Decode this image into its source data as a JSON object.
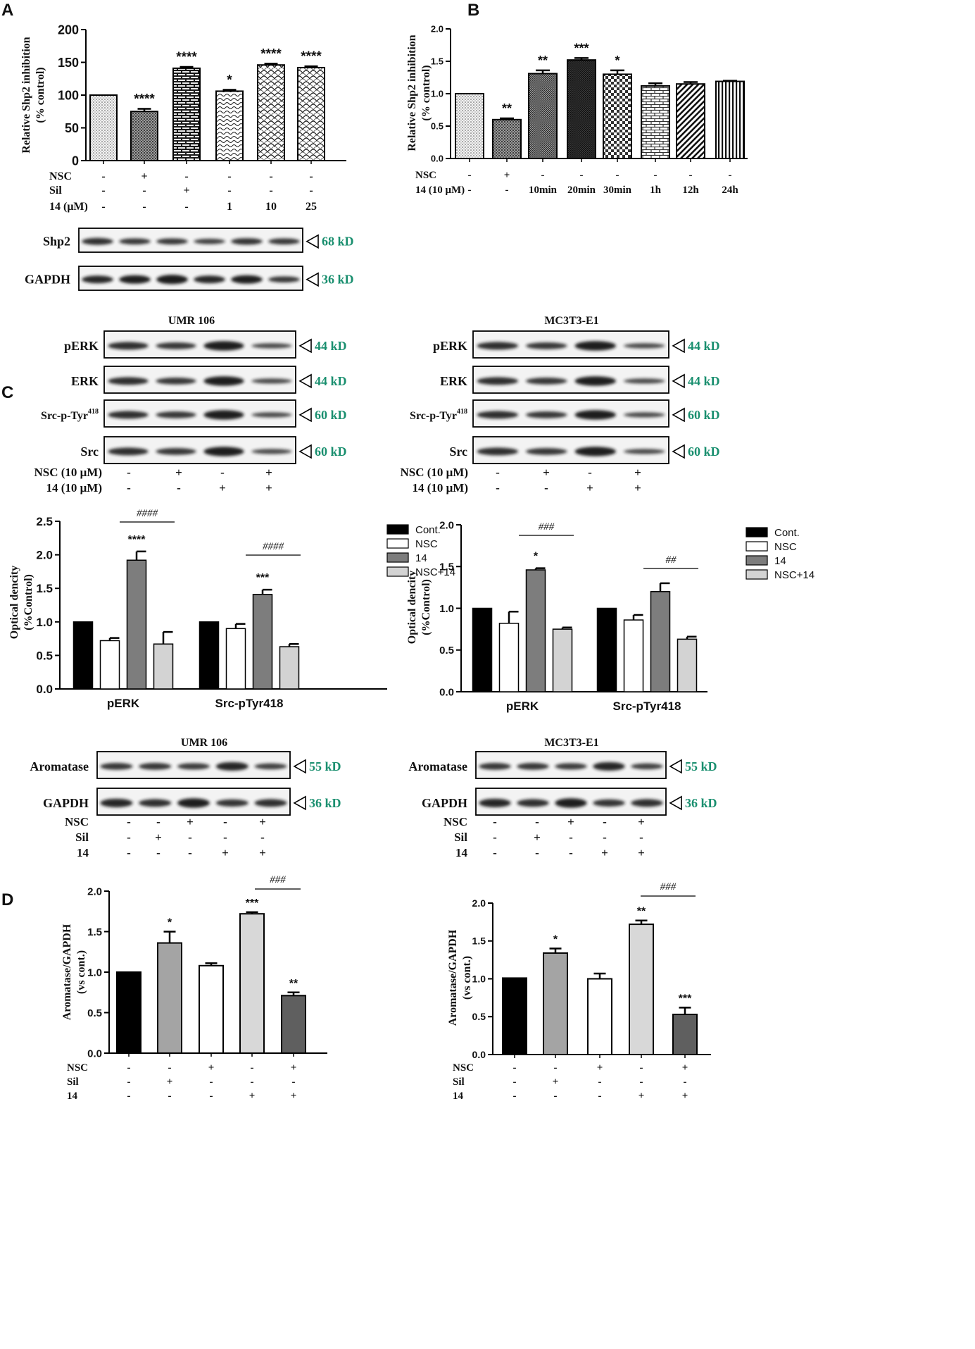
{
  "kd_color": "#1a8f6f",
  "panels": [
    {
      "letter": "A"
    },
    {
      "letter": "B"
    },
    {
      "letter": "C"
    },
    {
      "letter": "D"
    }
  ],
  "chart_data": [
    {
      "id": "A",
      "type": "bar",
      "ylabel": "Relative Shp2 inhibition\n(% control)",
      "ylim": [
        0,
        200
      ],
      "yticks": [
        "0",
        "50",
        "100",
        "150",
        "200"
      ],
      "values": [
        100,
        75,
        141,
        106,
        146,
        142
      ],
      "errors": [
        0,
        4,
        2,
        2,
        2,
        2
      ],
      "sig": [
        "",
        "****",
        "****",
        "*",
        "****",
        "****"
      ],
      "patterns": [
        "dots",
        "dots-dark",
        "brick",
        "wave",
        "scale",
        "scale"
      ],
      "condition_rows": [
        {
          "label": "NSC",
          "marks": [
            "-",
            "+",
            "-",
            "-",
            "-",
            "-"
          ]
        },
        {
          "label": "Sil",
          "marks": [
            "-",
            "-",
            "+",
            "-",
            "-",
            "-"
          ]
        },
        {
          "label": "14 (μM)",
          "marks": [
            "-",
            "-",
            "-",
            "1",
            "10",
            "25"
          ]
        }
      ]
    },
    {
      "id": "B",
      "type": "bar",
      "ylabel": "Relative Shp2 inhibition\n(% control)",
      "ylim": [
        0,
        2.0
      ],
      "yticks": [
        "0.0",
        "0.5",
        "1.0",
        "1.5",
        "2.0"
      ],
      "values": [
        1.0,
        0.6,
        1.31,
        1.52,
        1.3,
        1.12,
        1.15,
        1.19
      ],
      "errors": [
        0,
        0.02,
        0.05,
        0.03,
        0.06,
        0.04,
        0.03,
        0.01
      ],
      "sig": [
        "",
        "**",
        "**",
        "***",
        "*",
        "",
        "",
        ""
      ],
      "patterns": [
        "dots",
        "dots-dark",
        "dense",
        "dense-dark",
        "checker",
        "brick-light",
        "diag",
        "vlines"
      ],
      "condition_rows": [
        {
          "label": "NSC",
          "marks": [
            "-",
            "+",
            "-",
            "-",
            "-",
            "-",
            "-",
            "-"
          ]
        },
        {
          "label": "14 (10 μM)",
          "marks": [
            "-",
            "-",
            "10min",
            "20min",
            "30min",
            "1h",
            "12h",
            "24h"
          ]
        }
      ]
    },
    {
      "id": "C-UMR106",
      "type": "bar",
      "ylabel": "Optical dencity\n(%Control)",
      "ylim": [
        0,
        2.5
      ],
      "yticks": [
        "0.0",
        "0.5",
        "1.0",
        "1.5",
        "2.0",
        "2.5"
      ],
      "categories": [
        "pERK",
        "Src-pTyr418"
      ],
      "series": [
        {
          "name": "Cont.",
          "color": "#000000",
          "values": [
            1.0,
            1.0
          ],
          "errors": [
            0,
            0
          ]
        },
        {
          "name": "NSC",
          "color": "#ffffff",
          "values": [
            0.72,
            0.9
          ],
          "errors": [
            0.04,
            0.07
          ]
        },
        {
          "name": "14",
          "color": "#7d7d7d",
          "values": [
            1.92,
            1.41
          ],
          "errors": [
            0.13,
            0.07
          ]
        },
        {
          "name": "NSC+14",
          "color": "#d3d3d3",
          "values": [
            0.67,
            0.63
          ],
          "errors": [
            0.18,
            0.04
          ]
        }
      ],
      "sig": [
        [
          "",
          "",
          "****",
          ""
        ],
        [
          "",
          "",
          "***",
          ""
        ]
      ],
      "hash": [
        "####",
        "####"
      ]
    },
    {
      "id": "C-MC3T3",
      "type": "bar",
      "ylabel": "Optical dencity\n(%Control)",
      "ylim": [
        0,
        2.0
      ],
      "yticks": [
        "0.0",
        "0.5",
        "1.0",
        "1.5",
        "2.0"
      ],
      "categories": [
        "pERK",
        "Src-pTyr418"
      ],
      "series": [
        {
          "name": "Cont.",
          "color": "#000000",
          "values": [
            1.0,
            1.0
          ],
          "errors": [
            0,
            0
          ]
        },
        {
          "name": "NSC",
          "color": "#ffffff",
          "values": [
            0.82,
            0.86
          ],
          "errors": [
            0.14,
            0.06
          ]
        },
        {
          "name": "14",
          "color": "#7d7d7d",
          "values": [
            1.46,
            1.2
          ],
          "errors": [
            0.02,
            0.1
          ]
        },
        {
          "name": "NSC+14",
          "color": "#d3d3d3",
          "values": [
            0.75,
            0.63
          ],
          "errors": [
            0.02,
            0.03
          ]
        }
      ],
      "sig": [
        [
          "",
          "",
          "*",
          ""
        ],
        [
          "",
          "",
          "",
          ""
        ]
      ],
      "hash": [
        "###",
        "##"
      ]
    },
    {
      "id": "D-UMR106",
      "type": "bar",
      "ylabel": "Aromatase/GAPDH\n(vs cont.)",
      "ylim": [
        0,
        2.0
      ],
      "yticks": [
        "0.0",
        "0.5",
        "1.0",
        "1.5",
        "2.0"
      ],
      "values": [
        1.0,
        1.36,
        1.08,
        1.72,
        0.71
      ],
      "errors": [
        0,
        0.14,
        0.03,
        0.02,
        0.04
      ],
      "colors": [
        "#000000",
        "#a4a4a4",
        "#ffffff",
        "#d8d8d8",
        "#5f5f5f"
      ],
      "sig": [
        "",
        "*",
        "",
        "***",
        "**"
      ],
      "hash": "###",
      "condition_rows": [
        {
          "label": "NSC",
          "marks": [
            "-",
            "-",
            "+",
            "-",
            "+"
          ]
        },
        {
          "label": "Sil",
          "marks": [
            "-",
            "+",
            "-",
            "-",
            "-"
          ]
        },
        {
          "label": "14",
          "marks": [
            "-",
            "-",
            "-",
            "+",
            "+"
          ]
        }
      ]
    },
    {
      "id": "D-MC3T3",
      "type": "bar",
      "ylabel": "Aromatase/GAPDH\n(vs cont.)",
      "ylim": [
        0,
        2.0
      ],
      "yticks": [
        "0.0",
        "0.5",
        "1.0",
        "1.5",
        "2.0"
      ],
      "values": [
        1.01,
        1.34,
        1.0,
        1.72,
        0.53
      ],
      "errors": [
        0,
        0.06,
        0.07,
        0.05,
        0.09
      ],
      "colors": [
        "#000000",
        "#a4a4a4",
        "#ffffff",
        "#d8d8d8",
        "#5f5f5f"
      ],
      "sig": [
        "",
        "*",
        "",
        "**",
        "***"
      ],
      "hash": "###",
      "condition_rows": [
        {
          "label": "NSC",
          "marks": [
            "-",
            "-",
            "+",
            "-",
            "+"
          ]
        },
        {
          "label": "Sil",
          "marks": [
            "-",
            "+",
            "-",
            "-",
            "-"
          ]
        },
        {
          "label": "14",
          "marks": [
            "-",
            "-",
            "-",
            "+",
            "+"
          ]
        }
      ]
    }
  ],
  "blots": {
    "A": [
      {
        "label": "Shp2",
        "kd": "68 kD"
      },
      {
        "label": "GAPDH",
        "kd": "36 kD"
      }
    ],
    "C": [
      {
        "cell_line": "UMR 106",
        "rows": [
          {
            "label": "pERK",
            "kd": "44 kD"
          },
          {
            "label": "ERK",
            "kd": "44 kD"
          },
          {
            "label": "Src-p-Tyr",
            "sup": "418",
            "kd": "60 kD"
          },
          {
            "label": "Src",
            "kd": "60 kD"
          }
        ],
        "condition_rows": [
          {
            "label": "NSC (10 μM)",
            "marks": [
              "-",
              "+",
              "-",
              "+"
            ]
          },
          {
            "label": "14 (10 μM)",
            "marks": [
              "-",
              "-",
              "+",
              "+"
            ]
          }
        ]
      },
      {
        "cell_line": "MC3T3-E1",
        "rows": [
          {
            "label": "pERK",
            "kd": "44 kD"
          },
          {
            "label": "ERK",
            "kd": "44 kD"
          },
          {
            "label": "Src-p-Tyr",
            "sup": "418",
            "kd": "60 kD"
          },
          {
            "label": "Src",
            "kd": "60 kD"
          }
        ],
        "condition_rows": [
          {
            "label": "NSC (10 μM)",
            "marks": [
              "-",
              "+",
              "-",
              "+"
            ]
          },
          {
            "label": "14 (10 μM)",
            "marks": [
              "-",
              "-",
              "+",
              "+"
            ]
          }
        ]
      }
    ],
    "D": [
      {
        "cell_line": "UMR 106",
        "rows": [
          {
            "label": "Aromatase",
            "kd": "55 kD"
          },
          {
            "label": "GAPDH",
            "kd": "36 kD"
          }
        ],
        "condition_rows": [
          {
            "label": "NSC",
            "marks": [
              "-",
              "-",
              "+",
              "-",
              "+"
            ]
          },
          {
            "label": "Sil",
            "marks": [
              "-",
              "+",
              "-",
              "-",
              "-"
            ]
          },
          {
            "label": "14",
            "marks": [
              "-",
              "-",
              "-",
              "+",
              "+"
            ]
          }
        ]
      },
      {
        "cell_line": "MC3T3-E1",
        "rows": [
          {
            "label": "Aromatase",
            "kd": "55 kD"
          },
          {
            "label": "GAPDH",
            "kd": "36 kD"
          }
        ],
        "condition_rows": [
          {
            "label": "NSC",
            "marks": [
              "-",
              "-",
              "+",
              "-",
              "+"
            ]
          },
          {
            "label": "Sil",
            "marks": [
              "-",
              "+",
              "-",
              "-",
              "-"
            ]
          },
          {
            "label": "14",
            "marks": [
              "-",
              "-",
              "-",
              "+",
              "+"
            ]
          }
        ]
      }
    ]
  }
}
